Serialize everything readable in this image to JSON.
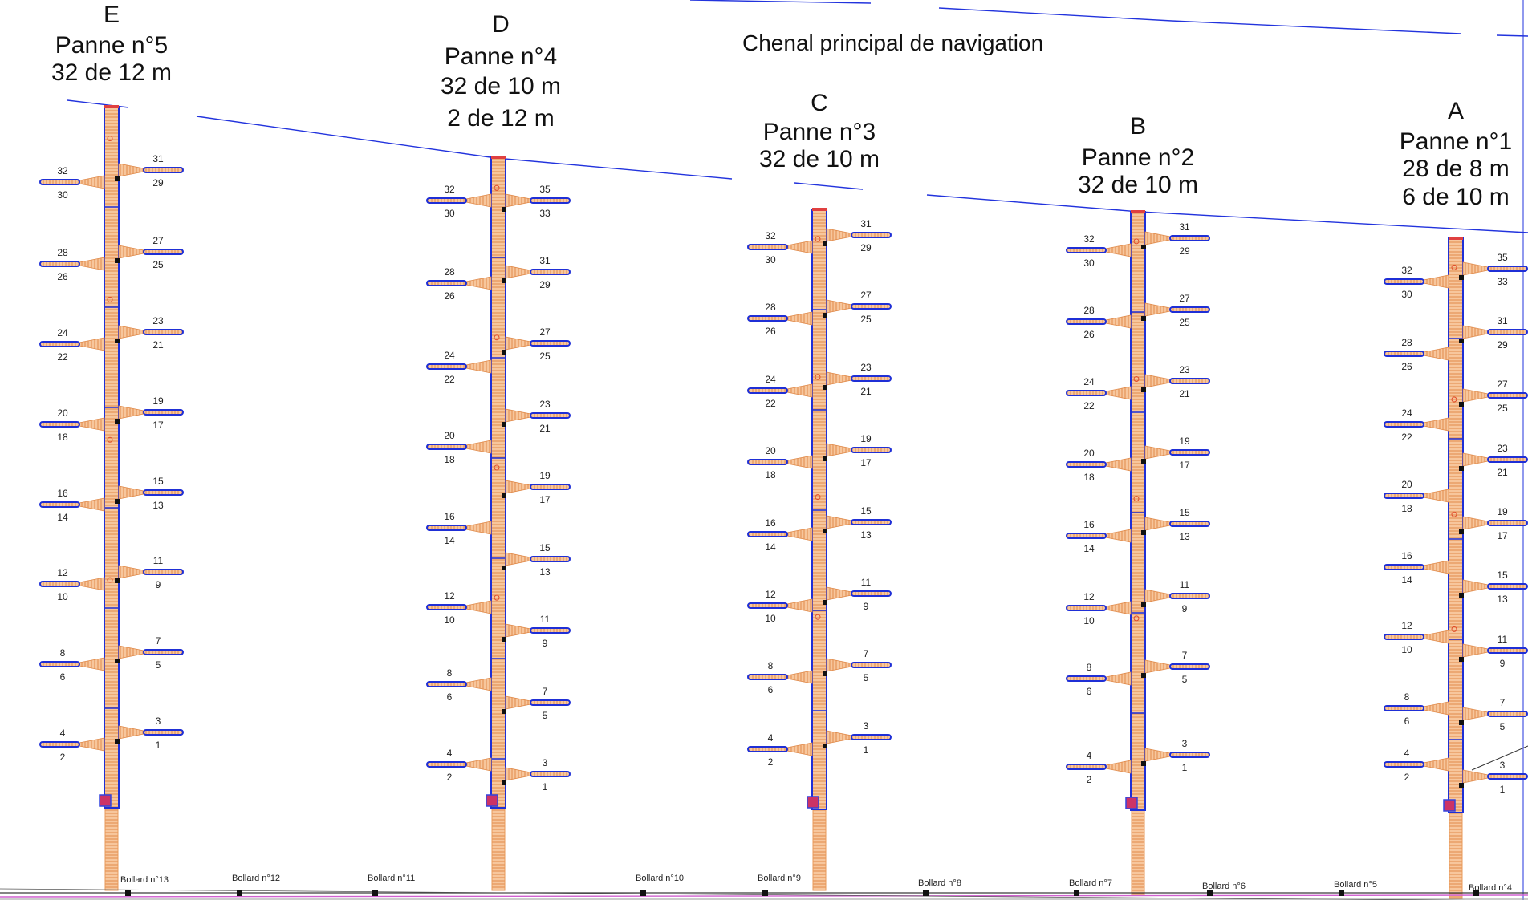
{
  "channel_label": "Chenal principal de navigation",
  "colors": {
    "spine_fill": "#f6c79a",
    "spine_outline": "#1f2fd6",
    "finger_fill": "#f4b98a",
    "quay_line": "#3a3a3a",
    "quay_accent": "#d060d0",
    "boundary": "#2233dd"
  },
  "pontoons": [
    {
      "letter": "E",
      "title": "Panne n°5",
      "details": [
        "32 de 12 m"
      ],
      "left_labels": [
        [
          "32",
          "30"
        ],
        [
          "28",
          "26"
        ],
        [
          "24",
          "22"
        ],
        [
          "20",
          "18"
        ],
        [
          "16",
          "14"
        ],
        [
          "12",
          "10"
        ],
        [
          "8",
          "6"
        ],
        [
          "4",
          "2"
        ]
      ],
      "right_labels": [
        [
          "31",
          "29"
        ],
        [
          "27",
          "25"
        ],
        [
          "23",
          "21"
        ],
        [
          "19",
          "17"
        ],
        [
          "15",
          "13"
        ],
        [
          "11",
          "9"
        ],
        [
          "7",
          "5"
        ],
        [
          "3",
          "1"
        ]
      ]
    },
    {
      "letter": "D",
      "title": "Panne n°4",
      "details": [
        "32 de 10 m",
        "2 de 12 m"
      ],
      "left_labels": [
        [
          "32",
          "30"
        ],
        [
          "28",
          "26"
        ],
        [
          "24",
          "22"
        ],
        [
          "20",
          "18"
        ],
        [
          "16",
          "14"
        ],
        [
          "12",
          "10"
        ],
        [
          "8",
          "6"
        ],
        [
          "4",
          "2"
        ]
      ],
      "right_labels": [
        [
          "35",
          "33"
        ],
        [
          "31",
          "29"
        ],
        [
          "27",
          "25"
        ],
        [
          "23",
          "21"
        ],
        [
          "19",
          "17"
        ],
        [
          "15",
          "13"
        ],
        [
          "11",
          "9"
        ],
        [
          "7",
          "5"
        ],
        [
          "3",
          "1"
        ]
      ]
    },
    {
      "letter": "C",
      "title": "Panne n°3",
      "details": [
        "32 de 10 m"
      ],
      "left_labels": [
        [
          "32",
          "30"
        ],
        [
          "28",
          "26"
        ],
        [
          "24",
          "22"
        ],
        [
          "20",
          "18"
        ],
        [
          "16",
          "14"
        ],
        [
          "12",
          "10"
        ],
        [
          "8",
          "6"
        ],
        [
          "4",
          "2"
        ]
      ],
      "right_labels": [
        [
          "31",
          "29"
        ],
        [
          "27",
          "25"
        ],
        [
          "23",
          "21"
        ],
        [
          "19",
          "17"
        ],
        [
          "15",
          "13"
        ],
        [
          "11",
          "9"
        ],
        [
          "7",
          "5"
        ],
        [
          "3",
          "1"
        ]
      ]
    },
    {
      "letter": "B",
      "title": "Panne n°2",
      "details": [
        "32 de 10 m"
      ],
      "left_labels": [
        [
          "32",
          "30"
        ],
        [
          "28",
          "26"
        ],
        [
          "24",
          "22"
        ],
        [
          "20",
          "18"
        ],
        [
          "16",
          "14"
        ],
        [
          "12",
          "10"
        ],
        [
          "8",
          "6"
        ],
        [
          "4",
          "2"
        ]
      ],
      "right_labels": [
        [
          "31",
          "29"
        ],
        [
          "27",
          "25"
        ],
        [
          "23",
          "21"
        ],
        [
          "19",
          "17"
        ],
        [
          "15",
          "13"
        ],
        [
          "11",
          "9"
        ],
        [
          "7",
          "5"
        ],
        [
          "3",
          "1"
        ]
      ]
    },
    {
      "letter": "A",
      "title": "Panne n°1",
      "details": [
        "28 de 8 m",
        "6 de 10 m"
      ],
      "left_labels": [
        [
          "32",
          "30"
        ],
        [
          "28",
          "26"
        ],
        [
          "24",
          "22"
        ],
        [
          "20",
          "18"
        ],
        [
          "16",
          "14"
        ],
        [
          "12",
          "10"
        ],
        [
          "8",
          "6"
        ],
        [
          "4",
          "2"
        ]
      ],
      "right_labels": [
        [
          "35",
          "33"
        ],
        [
          "31",
          "29"
        ],
        [
          "27",
          "25"
        ],
        [
          "23",
          "21"
        ],
        [
          "19",
          "17"
        ],
        [
          "15",
          "13"
        ],
        [
          "11",
          "9"
        ],
        [
          "7",
          "5"
        ],
        [
          "3",
          "1"
        ]
      ]
    }
  ],
  "bollards": [
    "Bollard n°13",
    "Bollard n°12",
    "Bollard n°11",
    "Bollard n°10",
    "Bollard n°9",
    "Bollard n°8",
    "Bollard n°7",
    "Bollard n°6",
    "Bollard n°5",
    "Bollard n°4"
  ]
}
